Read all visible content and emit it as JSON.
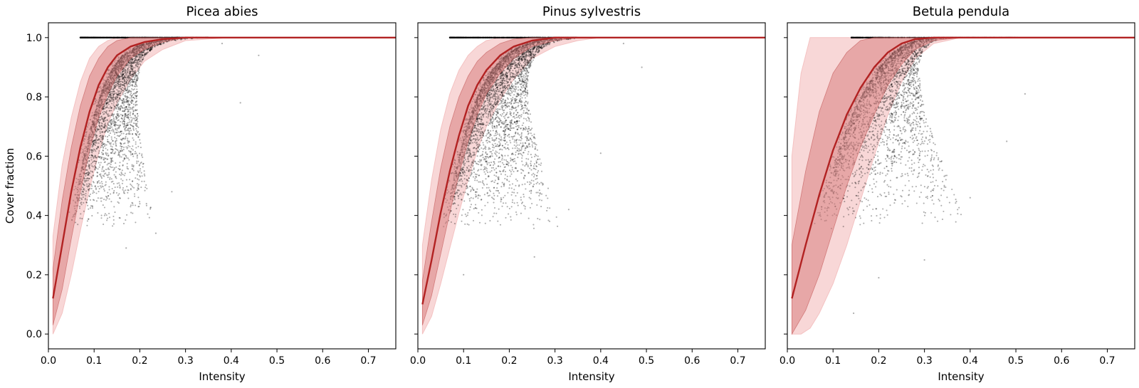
{
  "chart_data": [
    {
      "type": "scatter",
      "title": "Picea abies",
      "xlabel": "Intensity",
      "ylabel": "Cover fraction",
      "xlim": [
        0.0,
        0.76
      ],
      "ylim": [
        -0.05,
        1.05
      ],
      "xticks": [
        "0.0",
        "0.1",
        "0.2",
        "0.3",
        "0.4",
        "0.5",
        "0.6",
        "0.7"
      ],
      "yticks": [
        "0.0",
        "0.2",
        "0.4",
        "0.6",
        "0.8",
        "1.0"
      ],
      "show_yticklabels": true,
      "grid": false,
      "colors": {
        "points": "#000000",
        "fit_line": "#b22222",
        "band_inner": "#d98080",
        "band_outer": "#f4c2c2"
      },
      "point_cloud": {
        "count": 5000,
        "onset_intensity": 0.07,
        "x_spread_range": [
          0.035,
          0.18
        ],
        "fraction_at_saturation": 0.35,
        "isolated_points": [
          [
            0.17,
            0.29
          ],
          [
            0.235,
            0.34
          ],
          [
            0.27,
            0.48
          ],
          [
            0.42,
            0.78
          ],
          [
            0.46,
            0.94
          ],
          [
            0.38,
            0.98
          ]
        ]
      },
      "fit_line": {
        "x": [
          0.01,
          0.03,
          0.05,
          0.07,
          0.09,
          0.11,
          0.13,
          0.15,
          0.18,
          0.21,
          0.25,
          0.3,
          0.4,
          0.76
        ],
        "y": [
          0.12,
          0.3,
          0.48,
          0.63,
          0.75,
          0.84,
          0.9,
          0.94,
          0.97,
          0.985,
          0.995,
          1.0,
          1.0,
          1.0
        ]
      },
      "band_inner": {
        "x": [
          0.01,
          0.03,
          0.05,
          0.07,
          0.09,
          0.11,
          0.13,
          0.15,
          0.18,
          0.21,
          0.25,
          0.3,
          0.4,
          0.76
        ],
        "lower": [
          0.03,
          0.15,
          0.32,
          0.48,
          0.62,
          0.73,
          0.81,
          0.87,
          0.93,
          0.96,
          0.985,
          1.0,
          1.0,
          1.0
        ],
        "upper": [
          0.22,
          0.45,
          0.63,
          0.77,
          0.87,
          0.93,
          0.97,
          0.99,
          1.0,
          1.0,
          1.0,
          1.0,
          1.0,
          1.0
        ]
      },
      "band_outer": {
        "x": [
          0.01,
          0.03,
          0.05,
          0.07,
          0.09,
          0.11,
          0.13,
          0.15,
          0.18,
          0.21,
          0.25,
          0.3,
          0.4,
          0.76
        ],
        "lower": [
          0.0,
          0.07,
          0.2,
          0.35,
          0.49,
          0.61,
          0.71,
          0.78,
          0.86,
          0.92,
          0.96,
          0.99,
          1.0,
          1.0
        ],
        "upper": [
          0.33,
          0.57,
          0.73,
          0.85,
          0.93,
          0.97,
          0.99,
          1.0,
          1.0,
          1.0,
          1.0,
          1.0,
          1.0,
          1.0
        ]
      }
    },
    {
      "type": "scatter",
      "title": "Pinus sylvestris",
      "xlabel": "Intensity",
      "ylabel": "",
      "xlim": [
        0.0,
        0.76
      ],
      "ylim": [
        -0.05,
        1.05
      ],
      "xticks": [
        "0.0",
        "0.1",
        "0.2",
        "0.3",
        "0.4",
        "0.5",
        "0.6",
        "0.7"
      ],
      "yticks": [
        "0.0",
        "0.2",
        "0.4",
        "0.6",
        "0.8",
        "1.0"
      ],
      "show_yticklabels": false,
      "grid": false,
      "colors": {
        "points": "#000000",
        "fit_line": "#b22222",
        "band_inner": "#d98080",
        "band_outer": "#f4c2c2"
      },
      "point_cloud": {
        "count": 5500,
        "onset_intensity": 0.07,
        "x_spread_range": [
          0.045,
          0.25
        ],
        "fraction_at_saturation": 0.3,
        "isolated_points": [
          [
            0.1,
            0.2
          ],
          [
            0.255,
            0.26
          ],
          [
            0.33,
            0.42
          ],
          [
            0.4,
            0.61
          ],
          [
            0.49,
            0.9
          ],
          [
            0.45,
            0.98
          ]
        ]
      },
      "fit_line": {
        "x": [
          0.01,
          0.03,
          0.05,
          0.07,
          0.09,
          0.11,
          0.13,
          0.15,
          0.18,
          0.21,
          0.25,
          0.3,
          0.35,
          0.4,
          0.76
        ],
        "y": [
          0.1,
          0.25,
          0.41,
          0.55,
          0.67,
          0.77,
          0.84,
          0.89,
          0.94,
          0.97,
          0.99,
          1.0,
          1.0,
          1.0,
          1.0
        ]
      },
      "band_inner": {
        "x": [
          0.01,
          0.03,
          0.05,
          0.07,
          0.09,
          0.11,
          0.13,
          0.15,
          0.18,
          0.21,
          0.25,
          0.3,
          0.35,
          0.4,
          0.76
        ],
        "lower": [
          0.03,
          0.13,
          0.27,
          0.41,
          0.54,
          0.65,
          0.74,
          0.81,
          0.88,
          0.93,
          0.97,
          0.99,
          1.0,
          1.0,
          1.0
        ],
        "upper": [
          0.18,
          0.38,
          0.56,
          0.7,
          0.8,
          0.87,
          0.92,
          0.95,
          0.98,
          0.995,
          1.0,
          1.0,
          1.0,
          1.0,
          1.0
        ]
      },
      "band_outer": {
        "x": [
          0.01,
          0.03,
          0.05,
          0.07,
          0.09,
          0.11,
          0.13,
          0.15,
          0.18,
          0.21,
          0.25,
          0.3,
          0.35,
          0.4,
          0.76
        ],
        "lower": [
          0.0,
          0.06,
          0.17,
          0.29,
          0.41,
          0.52,
          0.62,
          0.7,
          0.79,
          0.86,
          0.93,
          0.97,
          0.99,
          1.0,
          1.0
        ],
        "upper": [
          0.3,
          0.52,
          0.69,
          0.81,
          0.89,
          0.94,
          0.97,
          0.99,
          1.0,
          1.0,
          1.0,
          1.0,
          1.0,
          1.0,
          1.0
        ]
      }
    },
    {
      "type": "scatter",
      "title": "Betula pendula",
      "xlabel": "Intensity",
      "ylabel": "",
      "xlim": [
        0.0,
        0.76
      ],
      "ylim": [
        -0.05,
        1.05
      ],
      "xticks": [
        "0.0",
        "0.1",
        "0.2",
        "0.3",
        "0.4",
        "0.5",
        "0.6",
        "0.7"
      ],
      "yticks": [
        "0.0",
        "0.2",
        "0.4",
        "0.6",
        "0.8",
        "1.0"
      ],
      "show_yticklabels": false,
      "grid": false,
      "colors": {
        "points": "#000000",
        "fit_line": "#b22222",
        "band_inner": "#d98080",
        "band_outer": "#f4c2c2"
      },
      "point_cloud": {
        "count": 4000,
        "onset_intensity": 0.14,
        "x_spread_range": [
          0.04,
          0.33
        ],
        "fraction_at_saturation": 0.25,
        "isolated_points": [
          [
            0.145,
            0.07
          ],
          [
            0.2,
            0.19
          ],
          [
            0.3,
            0.25
          ],
          [
            0.4,
            0.46
          ],
          [
            0.48,
            0.65
          ],
          [
            0.52,
            0.81
          ]
        ]
      },
      "fit_line": {
        "x": [
          0.01,
          0.04,
          0.07,
          0.1,
          0.13,
          0.16,
          0.19,
          0.22,
          0.25,
          0.28,
          0.32,
          0.38,
          0.45,
          0.76
        ],
        "y": [
          0.12,
          0.3,
          0.47,
          0.62,
          0.74,
          0.83,
          0.9,
          0.95,
          0.98,
          0.995,
          1.0,
          1.0,
          1.0,
          1.0
        ]
      },
      "band_inner": {
        "x": [
          0.01,
          0.04,
          0.07,
          0.1,
          0.13,
          0.16,
          0.19,
          0.22,
          0.25,
          0.28,
          0.32,
          0.38,
          0.45,
          0.76
        ],
        "lower": [
          0.0,
          0.08,
          0.2,
          0.35,
          0.5,
          0.63,
          0.74,
          0.84,
          0.91,
          0.96,
          0.99,
          1.0,
          1.0,
          1.0
        ],
        "upper": [
          0.3,
          0.55,
          0.75,
          0.88,
          0.95,
          0.99,
          1.0,
          1.0,
          1.0,
          1.0,
          1.0,
          1.0,
          1.0,
          1.0
        ]
      },
      "band_outer": {
        "x": [
          0.01,
          0.03,
          0.05,
          0.07,
          0.1,
          0.13,
          0.16,
          0.19,
          0.22,
          0.25,
          0.28,
          0.32,
          0.38,
          0.45,
          0.76
        ],
        "lower": [
          0.0,
          0.0,
          0.02,
          0.07,
          0.17,
          0.3,
          0.45,
          0.6,
          0.74,
          0.85,
          0.93,
          0.98,
          1.0,
          1.0,
          1.0
        ],
        "upper": [
          0.6,
          0.88,
          1.0,
          1.0,
          1.0,
          1.0,
          1.0,
          1.0,
          1.0,
          1.0,
          1.0,
          1.0,
          1.0,
          1.0,
          1.0
        ]
      }
    }
  ]
}
